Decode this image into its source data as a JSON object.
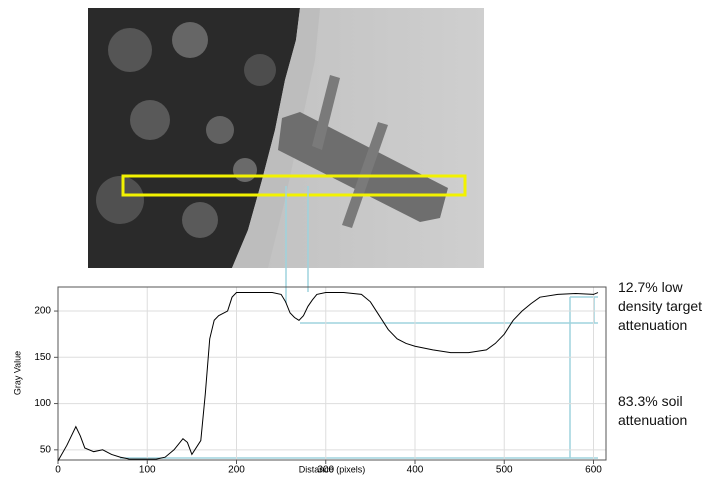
{
  "chart_data": {
    "type": "line",
    "x_label": "Distance (pixels)",
    "y_label": "Gray Value",
    "x": [
      0,
      10,
      20,
      25,
      30,
      40,
      50,
      60,
      70,
      80,
      90,
      100,
      110,
      120,
      130,
      140,
      145,
      150,
      160,
      165,
      170,
      175,
      180,
      190,
      195,
      200,
      220,
      240,
      250,
      255,
      260,
      265,
      270,
      275,
      280,
      285,
      290,
      300,
      320,
      340,
      350,
      360,
      370,
      380,
      390,
      400,
      420,
      440,
      460,
      480,
      490,
      500,
      510,
      520,
      530,
      540,
      560,
      580,
      600,
      605
    ],
    "values": [
      38,
      55,
      75,
      65,
      52,
      48,
      50,
      45,
      42,
      40,
      40,
      40,
      40,
      42,
      50,
      62,
      58,
      45,
      60,
      110,
      170,
      190,
      195,
      200,
      215,
      220,
      220,
      220,
      218,
      210,
      198,
      193,
      190,
      195,
      205,
      212,
      218,
      220,
      220,
      218,
      210,
      195,
      180,
      170,
      165,
      162,
      158,
      155,
      155,
      158,
      165,
      175,
      190,
      200,
      208,
      215,
      218,
      219,
      218,
      220
    ],
    "color": "#000000",
    "xlim": [
      0,
      614
    ],
    "ylim": [
      39,
      226
    ],
    "xticks": [
      0,
      100,
      200,
      300,
      400,
      500,
      600
    ],
    "yticks": [
      50,
      100,
      150,
      200
    ],
    "grid": true,
    "annotations": [
      [
        "12.7% low",
        "density target",
        "attenuation"
      ],
      [
        "83.3% soil",
        "attenuation"
      ]
    ]
  }
}
